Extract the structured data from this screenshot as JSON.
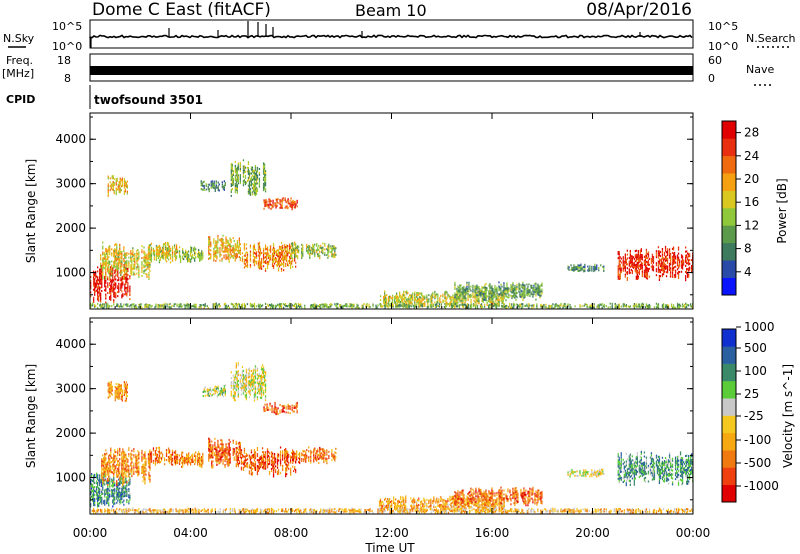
{
  "header": {
    "station": "Dome C East (fitACF)",
    "beam": "Beam 10",
    "date": "08/Apr/2016"
  },
  "strip_labels": {
    "nsky": "N.Sky",
    "nsearch": "N.Search",
    "freq_top": "Freq.",
    "freq_bottom": "[MHz]",
    "nave": "Nave",
    "cpid": "CPID",
    "cpid_value": "twofsound 3501",
    "nsky_top_tick": "10^5",
    "nsky_bottom_tick": "10^0",
    "freq_top_tick": "18",
    "freq_bottom_tick": "8",
    "nave_top_tick": "60",
    "nave_bottom_tick": "0"
  },
  "colors": {
    "power_scale": [
      "#0a14ff",
      "#2a4aa8",
      "#3d7a5e",
      "#5a9a4a",
      "#8fc83a",
      "#d8c820",
      "#f5a010",
      "#f06a10",
      "#e83010",
      "#e00000"
    ],
    "velocity_scale": [
      "#e00000",
      "#f04010",
      "#f07a10",
      "#f5a810",
      "#f5c820",
      "#c8c8c8",
      "#5acc3a",
      "#3a8a6a",
      "#2a60a0",
      "#1030d0"
    ]
  },
  "chart_data": [
    {
      "type": "heatmap",
      "name": "power",
      "ylabel": "Slant Range [km]",
      "xlabel": "Time UT",
      "xticks": [
        "00:00",
        "04:00",
        "08:00",
        "12:00",
        "16:00",
        "20:00",
        "00:00"
      ],
      "yticks": [
        "1000",
        "2000",
        "3000",
        "4000"
      ],
      "xlim": [
        0,
        24
      ],
      "ylim": [
        180,
        4590
      ],
      "colorbar": {
        "label": "Power [dB]",
        "ticks": [
          "4",
          "8",
          "12",
          "16",
          "20",
          "24",
          "28"
        ],
        "range": [
          0,
          30
        ]
      },
      "echo_regions": [
        {
          "t0": 0.0,
          "t1": 1.6,
          "r0": 300,
          "r1": 1200,
          "level": 0.92
        },
        {
          "t0": 0.4,
          "t1": 2.4,
          "r0": 800,
          "r1": 1700,
          "level": 0.55
        },
        {
          "t0": 2.3,
          "t1": 3.5,
          "r0": 1200,
          "r1": 1700,
          "level": 0.55
        },
        {
          "t0": 3.5,
          "t1": 4.5,
          "r0": 1200,
          "r1": 1600,
          "level": 0.42
        },
        {
          "t0": 4.7,
          "t1": 6.0,
          "r0": 1200,
          "r1": 1900,
          "level": 0.62
        },
        {
          "t0": 6.0,
          "t1": 8.2,
          "r0": 1000,
          "r1": 1700,
          "level": 0.68
        },
        {
          "t0": 8.0,
          "t1": 9.8,
          "r0": 1300,
          "r1": 1700,
          "level": 0.45
        },
        {
          "t0": 5.6,
          "t1": 7.0,
          "r0": 2700,
          "r1": 3600,
          "level": 0.38
        },
        {
          "t0": 6.9,
          "t1": 8.3,
          "r0": 2400,
          "r1": 2700,
          "level": 0.82
        },
        {
          "t0": 0.7,
          "t1": 1.5,
          "r0": 2700,
          "r1": 3200,
          "level": 0.6
        },
        {
          "t0": 4.4,
          "t1": 5.4,
          "r0": 2800,
          "r1": 3100,
          "level": 0.3
        },
        {
          "t0": 11.5,
          "t1": 16.5,
          "r0": 200,
          "r1": 600,
          "level": 0.5
        },
        {
          "t0": 14.5,
          "t1": 18.0,
          "r0": 350,
          "r1": 800,
          "level": 0.36
        },
        {
          "t0": 19.0,
          "t1": 20.5,
          "r0": 1000,
          "r1": 1200,
          "level": 0.3
        },
        {
          "t0": 21.0,
          "t1": 24.0,
          "r0": 800,
          "r1": 1600,
          "level": 0.88
        },
        {
          "t0": 0.0,
          "t1": 24.0,
          "r0": 180,
          "r1": 320,
          "level": 0.4
        }
      ]
    },
    {
      "type": "heatmap",
      "name": "velocity",
      "ylabel": "Slant Range [km]",
      "xlabel": "Time UT",
      "xticks": [
        "00:00",
        "04:00",
        "08:00",
        "12:00",
        "16:00",
        "20:00",
        "00:00"
      ],
      "yticks": [
        "1000",
        "2000",
        "3000",
        "4000"
      ],
      "xlim": [
        0,
        24
      ],
      "ylim": [
        180,
        4590
      ],
      "colorbar": {
        "label": "Velocity [m s^-1]",
        "ticks": [
          "-1000",
          "-500",
          "-100",
          "-25",
          "25",
          "100",
          "500",
          "1000"
        ],
        "range": [
          -1200,
          1200
        ]
      },
      "echo_regions": [
        {
          "t0": 0.0,
          "t1": 1.6,
          "r0": 300,
          "r1": 1200,
          "level": 0.75
        },
        {
          "t0": 0.4,
          "t1": 2.4,
          "r0": 800,
          "r1": 1700,
          "level": 0.3
        },
        {
          "t0": 2.3,
          "t1": 3.5,
          "r0": 1200,
          "r1": 1700,
          "level": 0.25
        },
        {
          "t0": 3.5,
          "t1": 4.5,
          "r0": 1200,
          "r1": 1600,
          "level": 0.3
        },
        {
          "t0": 4.7,
          "t1": 6.0,
          "r0": 1200,
          "r1": 1900,
          "level": 0.22
        },
        {
          "t0": 6.0,
          "t1": 8.2,
          "r0": 1000,
          "r1": 1700,
          "level": 0.2
        },
        {
          "t0": 8.0,
          "t1": 9.8,
          "r0": 1300,
          "r1": 1700,
          "level": 0.25
        },
        {
          "t0": 5.6,
          "t1": 7.0,
          "r0": 2700,
          "r1": 3600,
          "level": 0.52
        },
        {
          "t0": 6.9,
          "t1": 8.3,
          "r0": 2400,
          "r1": 2700,
          "level": 0.2
        },
        {
          "t0": 0.7,
          "t1": 1.5,
          "r0": 2700,
          "r1": 3200,
          "level": 0.3
        },
        {
          "t0": 4.4,
          "t1": 5.4,
          "r0": 2800,
          "r1": 3100,
          "level": 0.55
        },
        {
          "t0": 11.5,
          "t1": 16.5,
          "r0": 200,
          "r1": 600,
          "level": 0.35
        },
        {
          "t0": 14.5,
          "t1": 18.0,
          "r0": 350,
          "r1": 800,
          "level": 0.22
        },
        {
          "t0": 19.0,
          "t1": 20.5,
          "r0": 1000,
          "r1": 1200,
          "level": 0.52
        },
        {
          "t0": 21.0,
          "t1": 24.0,
          "r0": 800,
          "r1": 1600,
          "level": 0.72
        },
        {
          "t0": 0.0,
          "t1": 24.0,
          "r0": 180,
          "r1": 320,
          "level": 0.4
        }
      ]
    }
  ]
}
